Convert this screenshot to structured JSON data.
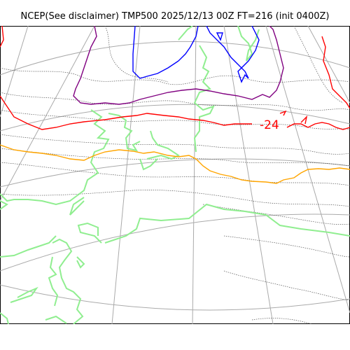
{
  "title": "NCEP(See disclaimer) TMP500 2025/12/13 00Z FT=216 (init 0400Z)",
  "contour_labels": [
    {
      "text": "-24",
      "color": "#ff0000"
    }
  ],
  "legend_colors": {
    "coast": "#90ee90",
    "grid": "#aaaaaa",
    "isotherm_minus24": "#ff0000",
    "isotherm_warm": "#ffa500",
    "isotherm_cold_purple": "#800080",
    "isotherm_cold_blue": "#0000ff",
    "minor_contours": "#555555"
  }
}
